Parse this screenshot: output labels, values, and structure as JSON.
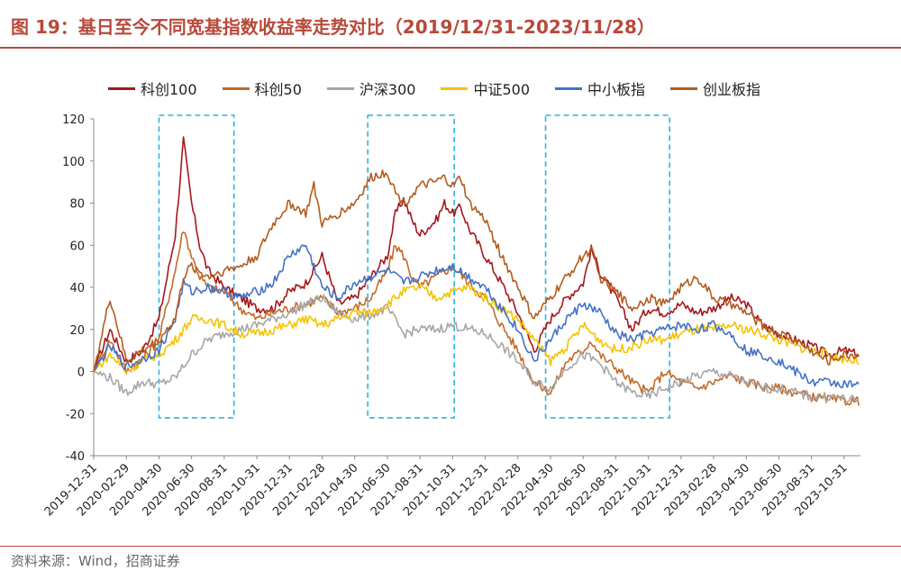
{
  "header": {
    "title": "图 19：基日至今不同宽基指数收益率走势对比（2019/12/31-2023/11/28）"
  },
  "footer": {
    "source": "资料来源：Wind，招商证券"
  },
  "chart_data": {
    "type": "line",
    "title": "基日至今不同宽基指数收益率走势对比（2019/12/31-2023/11/28）",
    "ylim": [
      -40,
      120
    ],
    "yticks": [
      120,
      100,
      80,
      60,
      40,
      20,
      0,
      -20,
      -40
    ],
    "xlim": [
      0,
      47
    ],
    "xtick_labels": [
      "2019-12-31",
      "2020-02-29",
      "2020-04-30",
      "2020-06-30",
      "2020-08-31",
      "2020-10-31",
      "2020-12-31",
      "2021-02-28",
      "2021-04-30",
      "2021-06-30",
      "2021-08-31",
      "2021-10-31",
      "2021-12-31",
      "2022-02-28",
      "2022-04-30",
      "2022-06-30",
      "2022-08-31",
      "2022-10-31",
      "2022-12-31",
      "2023-02-28",
      "2023-04-30",
      "2023-06-30",
      "2023-08-31",
      "2023-10-31"
    ],
    "xtick_positions": [
      0,
      2,
      4,
      6,
      8,
      10,
      12,
      14,
      16,
      18,
      20,
      22,
      24,
      26,
      28,
      30,
      32,
      34,
      36,
      38,
      40,
      42,
      44,
      46
    ],
    "grid": false,
    "legend_position": "top",
    "highlight_periods": [
      [
        4,
        8.6
      ],
      [
        16.8,
        22.1
      ],
      [
        27.7,
        35.3
      ]
    ],
    "series": [
      {
        "name": "科创100",
        "color": "#a6171b",
        "x": [
          0,
          1,
          2,
          3,
          4,
          4.5,
          5,
          5.5,
          6,
          6.5,
          7,
          8,
          9,
          10,
          11,
          12,
          13,
          14,
          15,
          16,
          17,
          18,
          18.5,
          19,
          19.5,
          20,
          21,
          21.5,
          22,
          22.5,
          23,
          24,
          25,
          26,
          27,
          28,
          29,
          30,
          30.5,
          31,
          32,
          33,
          34,
          35,
          36,
          37,
          38,
          39,
          40,
          41,
          42,
          43,
          44,
          45,
          46,
          46.9
        ],
        "values": [
          0,
          20,
          5,
          10,
          25,
          45,
          65,
          110,
          80,
          60,
          48,
          40,
          35,
          30,
          30,
          38,
          42,
          55,
          32,
          35,
          45,
          55,
          75,
          82,
          72,
          65,
          72,
          80,
          75,
          78,
          68,
          55,
          42,
          28,
          10,
          25,
          35,
          42,
          58,
          48,
          35,
          20,
          30,
          28,
          32,
          28,
          30,
          35,
          32,
          22,
          18,
          15,
          12,
          8,
          10,
          8
        ]
      },
      {
        "name": "科创50",
        "color": "#c46a28",
        "x": [
          0,
          1,
          2,
          3,
          4,
          4.5,
          5,
          5.5,
          6,
          6.5,
          7,
          8,
          9,
          10,
          11,
          12,
          13,
          14,
          15,
          16,
          17,
          18,
          18.5,
          19,
          19.5,
          20,
          21,
          22,
          23,
          24,
          25,
          26,
          27,
          28,
          29,
          30,
          30.5,
          31,
          32,
          33,
          34,
          35,
          36,
          37,
          38,
          39,
          40,
          41,
          42,
          43,
          44,
          45,
          46,
          46.9
        ],
        "values": [
          0,
          15,
          0,
          6,
          15,
          32,
          48,
          68,
          55,
          45,
          40,
          38,
          30,
          25,
          28,
          30,
          32,
          35,
          28,
          30,
          35,
          48,
          60,
          55,
          45,
          40,
          45,
          50,
          42,
          35,
          22,
          10,
          -5,
          -10,
          5,
          10,
          15,
          8,
          2,
          -5,
          -10,
          0,
          -5,
          -8,
          -5,
          -2,
          -5,
          -7,
          -8,
          -10,
          -12,
          -13,
          -14,
          -14
        ]
      },
      {
        "name": "沪深300",
        "color": "#a6a6a6",
        "x": [
          0,
          1,
          2,
          3,
          4,
          5,
          6,
          7,
          8,
          9,
          10,
          11,
          12,
          13,
          14,
          15,
          16,
          17,
          18,
          19,
          20,
          21,
          22,
          23,
          24,
          25,
          26,
          27,
          28,
          29,
          30,
          31,
          32,
          33,
          34,
          35,
          36,
          37,
          38,
          39,
          40,
          41,
          42,
          43,
          44,
          45,
          46,
          46.9
        ],
        "values": [
          0,
          -3,
          -10,
          -5,
          -6,
          -3,
          8,
          15,
          18,
          20,
          22,
          25,
          28,
          32,
          35,
          28,
          25,
          27,
          30,
          18,
          20,
          20,
          22,
          20,
          18,
          12,
          5,
          -5,
          -8,
          2,
          8,
          4,
          -5,
          -10,
          -12,
          -8,
          -5,
          -2,
          0,
          -2,
          -5,
          -8,
          -8,
          -10,
          -12,
          -12,
          -13,
          -14
        ]
      },
      {
        "name": "中证500",
        "color": "#f5c200",
        "x": [
          0,
          1,
          2,
          3,
          4,
          5,
          6,
          7,
          8,
          9,
          10,
          11,
          12,
          13,
          14,
          15,
          16,
          17,
          18,
          19,
          20,
          21,
          22,
          23,
          24,
          25,
          26,
          27,
          28,
          29,
          30,
          31,
          32,
          33,
          34,
          35,
          36,
          37,
          38,
          39,
          40,
          41,
          42,
          43,
          44,
          45,
          46,
          46.9
        ],
        "values": [
          0,
          8,
          0,
          5,
          8,
          15,
          25,
          25,
          22,
          18,
          18,
          20,
          22,
          25,
          22,
          25,
          28,
          28,
          32,
          38,
          40,
          35,
          38,
          40,
          35,
          30,
          25,
          15,
          5,
          12,
          22,
          15,
          10,
          12,
          15,
          15,
          18,
          20,
          20,
          22,
          20,
          18,
          15,
          12,
          10,
          8,
          6,
          5
        ]
      },
      {
        "name": "中小板指",
        "color": "#4472c4",
        "x": [
          0,
          1,
          2,
          3,
          4,
          5,
          5.5,
          6,
          7,
          8,
          9,
          10,
          11,
          12,
          13,
          14,
          15,
          16,
          17,
          18,
          19,
          20,
          21,
          22,
          23,
          24,
          25,
          26,
          27,
          28,
          29,
          30,
          31,
          32,
          33,
          34,
          35,
          36,
          37,
          38,
          39,
          40,
          41,
          42,
          43,
          44,
          45,
          46,
          46.9
        ],
        "values": [
          0,
          12,
          2,
          6,
          10,
          25,
          42,
          38,
          40,
          38,
          35,
          38,
          42,
          55,
          60,
          40,
          35,
          42,
          45,
          48,
          42,
          45,
          48,
          50,
          45,
          40,
          30,
          20,
          5,
          15,
          25,
          32,
          28,
          18,
          15,
          18,
          20,
          22,
          20,
          22,
          18,
          10,
          8,
          5,
          0,
          -5,
          -5,
          -6,
          -7
        ]
      },
      {
        "name": "创业板指",
        "color": "#b35b1e",
        "x": [
          0,
          1,
          2,
          3,
          4,
          5,
          5.5,
          6,
          7,
          8,
          9,
          10,
          11,
          12,
          13,
          13.5,
          14,
          15,
          16,
          17,
          18,
          18.5,
          19,
          20,
          21,
          21.5,
          22,
          22.5,
          23,
          24,
          25,
          26,
          27,
          28,
          29,
          30,
          30.5,
          31,
          32,
          33,
          34,
          35,
          36,
          37,
          38,
          39,
          40,
          41,
          42,
          43,
          44,
          45,
          46,
          46.9
        ],
        "values": [
          0,
          35,
          5,
          10,
          15,
          25,
          45,
          50,
          45,
          48,
          50,
          55,
          70,
          80,
          75,
          88,
          70,
          75,
          80,
          92,
          95,
          85,
          80,
          88,
          90,
          92,
          88,
          92,
          80,
          72,
          55,
          40,
          25,
          35,
          45,
          55,
          58,
          45,
          38,
          30,
          35,
          32,
          40,
          45,
          35,
          32,
          28,
          22,
          18,
          15,
          10,
          5,
          8,
          8
        ]
      }
    ]
  }
}
